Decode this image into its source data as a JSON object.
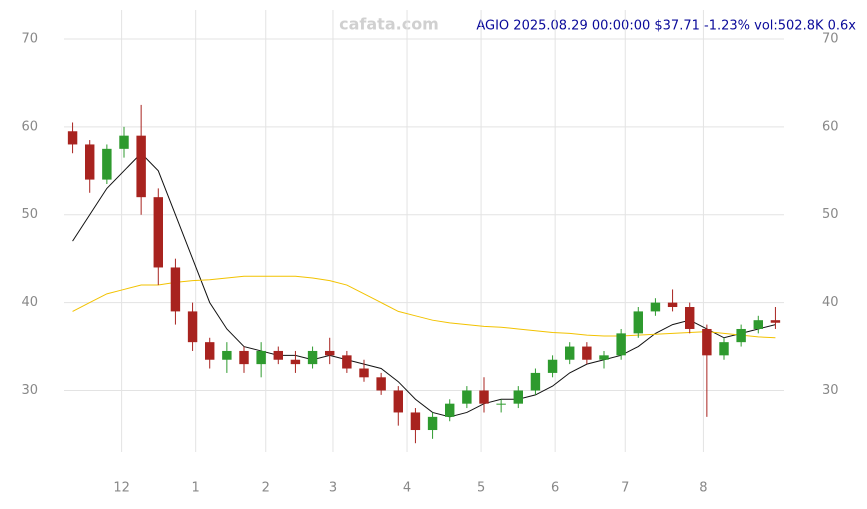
{
  "chart_data": {
    "type": "candlestick",
    "watermark": "cafata.com",
    "title": "AGIO 2025.08.29 00:00:00 $37.71 -1.23% vol:502.8K 0.6x",
    "up_color": "#2e9a2e",
    "down_color": "#a8231f",
    "grid": true,
    "x": [
      0,
      1,
      2,
      3,
      4,
      5,
      6,
      7,
      8,
      9,
      10,
      11,
      12,
      13,
      14,
      15,
      16,
      17,
      18,
      19,
      20,
      21,
      22,
      23,
      24,
      25,
      26,
      27,
      28,
      29,
      30,
      31,
      32,
      33,
      34,
      35,
      36,
      37,
      38,
      39,
      40,
      41
    ],
    "open": [
      59.5,
      58,
      54,
      57.5,
      59,
      52,
      44,
      39,
      35.5,
      33.5,
      34.5,
      33,
      34.5,
      33.5,
      33,
      34.5,
      34,
      32.5,
      31.5,
      30,
      27.5,
      25.5,
      27,
      28.5,
      30,
      28.5,
      28.5,
      30,
      32,
      33.5,
      35,
      33.5,
      34,
      36.5,
      39,
      40,
      39.5,
      37,
      34,
      35.5,
      37,
      38
    ],
    "high": [
      60.5,
      58.5,
      58,
      60,
      62.5,
      53,
      45,
      40,
      36,
      35.5,
      35,
      35.5,
      35,
      34.5,
      35,
      36,
      34.5,
      33.5,
      32,
      30.5,
      28,
      27.5,
      29,
      30.5,
      31.5,
      29,
      30.5,
      32.5,
      34,
      35.5,
      35.5,
      34.5,
      37,
      39.5,
      40.5,
      41.5,
      40,
      37.5,
      36,
      37.5,
      38.5,
      39.5
    ],
    "low": [
      57,
      52.5,
      53.5,
      56.5,
      50,
      42,
      37.5,
      34.5,
      32.5,
      32,
      32,
      31.5,
      33,
      32,
      32.5,
      33,
      32,
      31,
      29.5,
      26,
      24,
      24.5,
      26.5,
      28,
      27.5,
      27.5,
      28,
      29.5,
      31.5,
      33,
      33,
      32.5,
      33.5,
      36,
      38.5,
      39,
      36.5,
      27,
      33.5,
      35,
      36.5,
      37
    ],
    "close": [
      58,
      54,
      57.5,
      59,
      52,
      44,
      39,
      35.5,
      33.5,
      34.5,
      33,
      34.5,
      33.5,
      33,
      34.5,
      34,
      32.5,
      31.5,
      30,
      27.5,
      25.5,
      27,
      28.5,
      30,
      28.5,
      28.5,
      30,
      32,
      33.5,
      35,
      33.5,
      34,
      36.5,
      39,
      40,
      39.5,
      37,
      34,
      35.5,
      37,
      38,
      37.71
    ],
    "lines": [
      {
        "color": "#111111",
        "values": [
          47,
          50,
          53,
          55,
          57,
          55,
          50,
          45,
          40,
          37,
          35,
          34.5,
          34,
          34,
          33.5,
          34,
          33.5,
          33,
          32.5,
          31,
          29,
          27.5,
          27,
          27.5,
          28.5,
          29,
          29,
          29.5,
          30.5,
          32,
          33,
          33.5,
          34,
          35,
          36.5,
          37.5,
          38,
          37,
          36,
          36.5,
          37,
          37.5
        ]
      },
      {
        "color": "#f2c200",
        "values": [
          39,
          40,
          41,
          41.5,
          42,
          42,
          42.3,
          42.5,
          42.6,
          42.8,
          43,
          43,
          43,
          43,
          42.8,
          42.5,
          42,
          41,
          40,
          39,
          38.5,
          38,
          37.7,
          37.5,
          37.3,
          37.2,
          37,
          36.8,
          36.6,
          36.5,
          36.3,
          36.2,
          36.2,
          36.3,
          36.4,
          36.5,
          36.6,
          36.7,
          36.5,
          36.3,
          36.1,
          36
        ]
      }
    ],
    "xlim": [
      -0.5,
      41.5
    ],
    "xticks": [
      {
        "value": 2.86,
        "label": "12"
      },
      {
        "value": 7.18,
        "label": "1"
      },
      {
        "value": 11.27,
        "label": "2"
      },
      {
        "value": 15.19,
        "label": "3"
      },
      {
        "value": 19.51,
        "label": "4"
      },
      {
        "value": 23.83,
        "label": "5"
      },
      {
        "value": 28.15,
        "label": "6"
      },
      {
        "value": 32.24,
        "label": "7"
      },
      {
        "value": 36.8,
        "label": "8"
      }
    ],
    "ylim": [
      23,
      73.3
    ],
    "yticks": [
      30,
      40,
      50,
      60,
      70
    ]
  }
}
